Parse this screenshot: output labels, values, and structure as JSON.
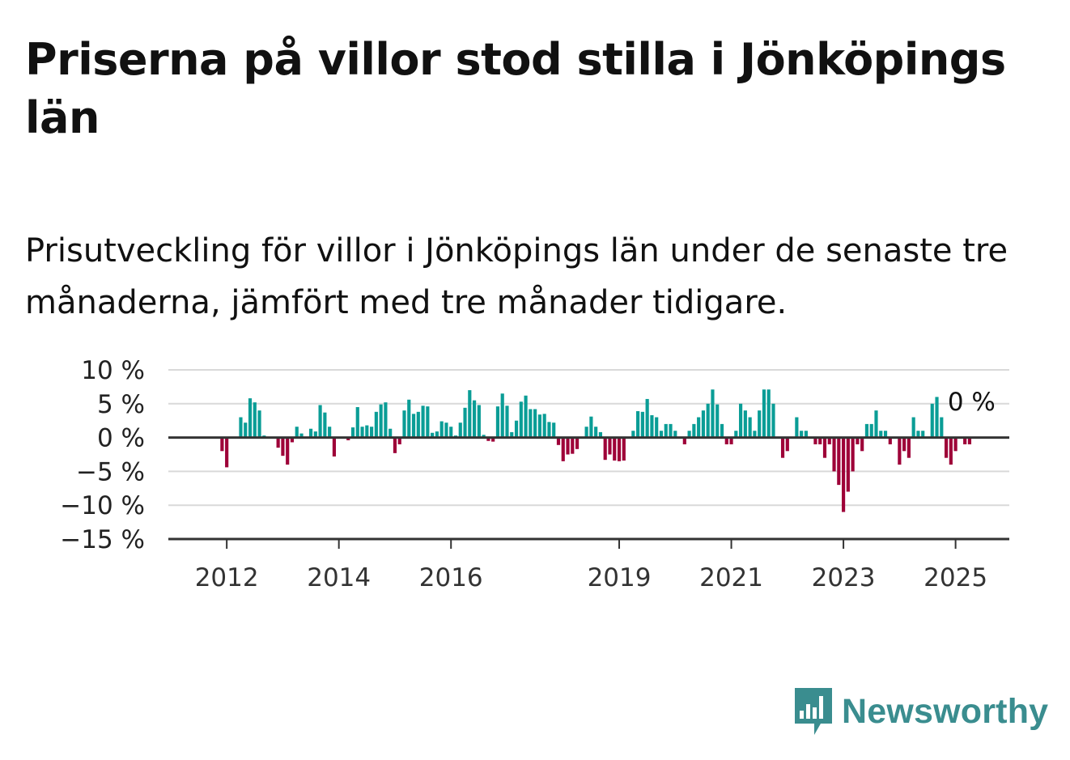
{
  "title": "Priserna på villor stod stilla i Jönköpings län",
  "subtitle": "Prisutveckling för villor i Jönköpings län under de senaste tre månaderna, jämfört med tre månader tidigare.",
  "brand": {
    "name": "Newsworthy",
    "color": "#3a8d8f",
    "icon": "bar-chart-speech-bubble-icon"
  },
  "colors": {
    "positive": "#0a9d96",
    "negative": "#9e0038",
    "grid": "#d9d9d9",
    "axis": "#333333"
  },
  "chart_data": {
    "type": "bar",
    "title": "",
    "xlabel": "",
    "ylabel": "",
    "ylim": [
      -15,
      10
    ],
    "yticks": [
      10,
      5,
      0,
      -5,
      -10,
      -15
    ],
    "ytick_labels": [
      "10 %",
      "5 %",
      "0 %",
      "−5 %",
      "−10 %",
      "−15 %"
    ],
    "x_start": "2011-01",
    "x_end": "2025-12",
    "xticks": [
      {
        "date": "2012-01",
        "label": "2012"
      },
      {
        "date": "2014-01",
        "label": "2014"
      },
      {
        "date": "2016-01",
        "label": "2016"
      },
      {
        "date": "2019-01",
        "label": "2019"
      },
      {
        "date": "2021-01",
        "label": "2021"
      },
      {
        "date": "2023-01",
        "label": "2023"
      },
      {
        "date": "2025-01",
        "label": "2025"
      }
    ],
    "grid": true,
    "end_label": "0 %",
    "series": [
      {
        "start": "2011-12",
        "values": [
          -2,
          -4.4,
          0,
          0,
          3,
          2.2,
          5.8,
          5.2,
          4,
          0.3,
          0,
          0,
          -1.5,
          -2.7,
          -4,
          -0.7,
          1.6,
          0.6,
          0,
          1.3,
          0.9,
          4.8,
          3.7,
          1.6,
          -2.8,
          0,
          0,
          -0.4,
          1.5,
          4.5,
          1.6,
          1.8,
          1.6,
          3.8,
          4.9,
          5.2,
          1.3,
          -2.3,
          -1,
          4,
          5.6,
          3.5,
          3.8,
          4.7,
          4.6,
          0.7,
          0.9,
          2.4,
          2.2,
          1.6,
          0.3,
          2.2,
          4.4,
          7,
          5.5,
          4.8,
          0.4,
          -0.5,
          -0.6,
          4.6,
          6.5,
          4.7,
          0.8,
          2.5,
          5.3,
          6.2,
          4.2,
          4.2,
          3.4,
          3.5,
          2.3,
          2.2,
          -1.1,
          -3.5,
          -2.5,
          -2.4,
          -1.7,
          0,
          1.6,
          3.1,
          1.6,
          0.8,
          -3.3,
          -2.5,
          -3.4,
          -3.5,
          -3.4,
          0,
          1,
          3.9,
          3.8,
          5.7,
          3.3,
          3,
          1,
          2,
          2,
          1,
          0,
          -1,
          1,
          2,
          3,
          4,
          5,
          7.1,
          4.9,
          2,
          -1,
          -1,
          1,
          5,
          4,
          3,
          1,
          4,
          7.1,
          7.1,
          5,
          0,
          -3,
          -2,
          0,
          3,
          1,
          1,
          0,
          -1,
          -1,
          -3,
          -1,
          -5,
          -7,
          -11,
          -8,
          -5,
          -1,
          -2,
          2,
          2,
          4,
          1,
          1,
          -1,
          0,
          -4,
          -2,
          -3,
          3,
          1,
          1,
          0,
          5,
          6,
          3,
          -3,
          -4,
          -2,
          0,
          -1,
          -1,
          0
        ]
      }
    ]
  }
}
